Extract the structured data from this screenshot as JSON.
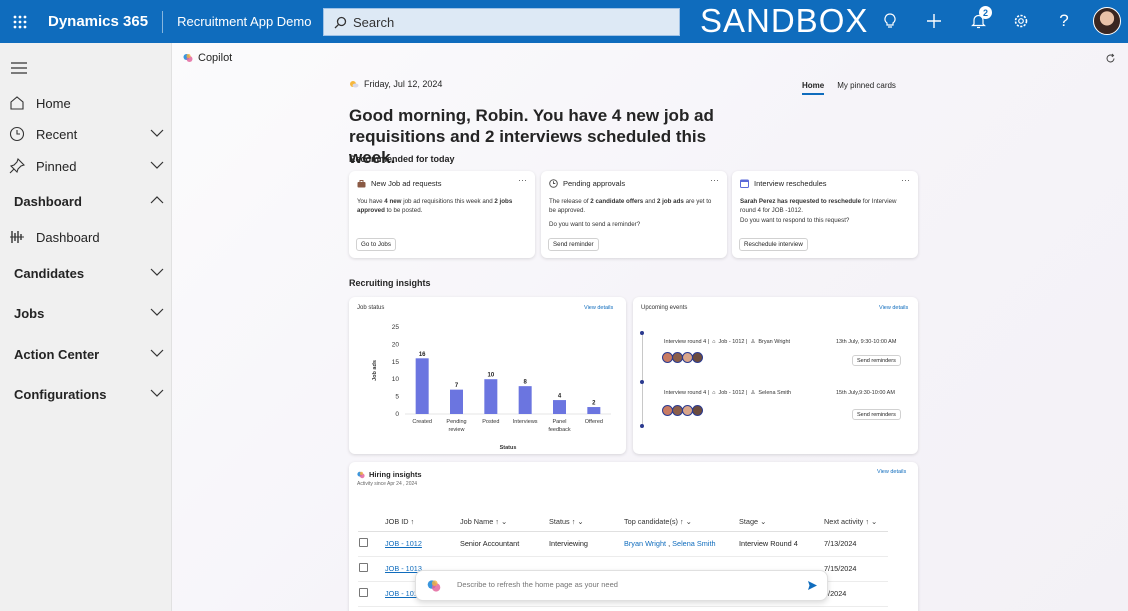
{
  "topbar": {
    "app_name": "Dynamics 365",
    "app_title": "Recruitment App Demo",
    "search_placeholder": "Search",
    "environment": "SANDBOX",
    "notification_count": "2"
  },
  "sidebar": {
    "items": [
      {
        "label": "Home",
        "icon": "home-icon"
      },
      {
        "label": "Recent",
        "icon": "clock-icon"
      },
      {
        "label": "Pinned",
        "icon": "pin-icon"
      }
    ],
    "dashboard_group": "Dashboard",
    "dashboard_item": "Dashboard",
    "groups": [
      "Candidates",
      "Jobs",
      "Action Center",
      "Configurations"
    ]
  },
  "copilot": {
    "header": "Copilot",
    "date": "Friday, Jul 12, 2024",
    "tabs": [
      "Home",
      "My pinned cards"
    ],
    "greeting": "Good morning, Robin. You have 4 new job ad requisitions and 2 interviews scheduled this week.",
    "recommended_title": "Recommended for today",
    "cards": [
      {
        "title": "New Job ad requests",
        "body_parts": [
          "You have ",
          "4 new",
          " job ad requisitions this week and ",
          "2 jobs approved",
          " to be posted."
        ],
        "body2": "",
        "button": "Go to Jobs"
      },
      {
        "title": "Pending approvals",
        "body_parts": [
          "The release of ",
          "2 candidate offers",
          " and ",
          "2 job ads",
          " are yet to be approved."
        ],
        "body2": "Do you want to send a reminder?",
        "button": "Send reminder"
      },
      {
        "title": "Interview reschedules",
        "body_parts": [
          "",
          "Sarah Perez has requested to reschedule",
          " for Interview round 4 for JOB -1012.",
          "",
          ""
        ],
        "body2": "Do you want to respond to this request?",
        "button": "Reschedule interview"
      }
    ],
    "insights_title": "Recruiting insights",
    "view_details": "View details",
    "job_status": {
      "title": "Job status"
    },
    "events": {
      "title": "Upcoming events",
      "items": [
        {
          "title": "Interview round 4 |",
          "job": "Job - 1012 |",
          "person": "Bryan Wright",
          "when": "13th July, 9:30-10:00 AM",
          "button": "Send reminders"
        },
        {
          "title": "Interview round 4 |",
          "job": "Job - 1012 |",
          "person": "Selena Smith",
          "when": "15th July,9:30-10:00 AM",
          "button": "Send reminders"
        }
      ]
    },
    "hiring": {
      "title": "Hiring insights",
      "subtitle": "Activity since Apr 24 , 2024",
      "columns": [
        "JOB ID",
        "Job Name",
        "Status",
        "Top candidate(s)",
        "Stage",
        "Next activity"
      ],
      "rows": [
        {
          "id": "JOB - 1012",
          "name": "Senior Accountant",
          "status": "Interviewing",
          "cand1": "Bryan Wright",
          "cand2": "Selena Smith",
          "stage": "Interview Round 4",
          "next": "7/13/2024"
        },
        {
          "id": "JOB - 1013",
          "name": "",
          "status": "",
          "cand1": "",
          "cand2": "",
          "stage": "",
          "next": "7/15/2024"
        },
        {
          "id": "JOB - 1014",
          "name": "",
          "status": "",
          "cand1": "",
          "cand2": "",
          "stage": "",
          "next": "6/2024"
        }
      ]
    },
    "composer_placeholder": "Describe to refresh the home page as your need"
  },
  "chart_data": {
    "type": "bar",
    "title": "Job status",
    "categories": [
      "Created",
      "Pending review",
      "Posted",
      "Interviews",
      "Panel feedback",
      "Offered"
    ],
    "values": [
      16,
      7,
      10,
      8,
      4,
      2
    ],
    "xlabel": "Status",
    "ylabel": "Job ads",
    "ylim": [
      0,
      25
    ],
    "yticks": [
      0,
      5,
      10,
      15,
      20,
      25
    ],
    "grid": false,
    "color": "#6b75e0"
  }
}
